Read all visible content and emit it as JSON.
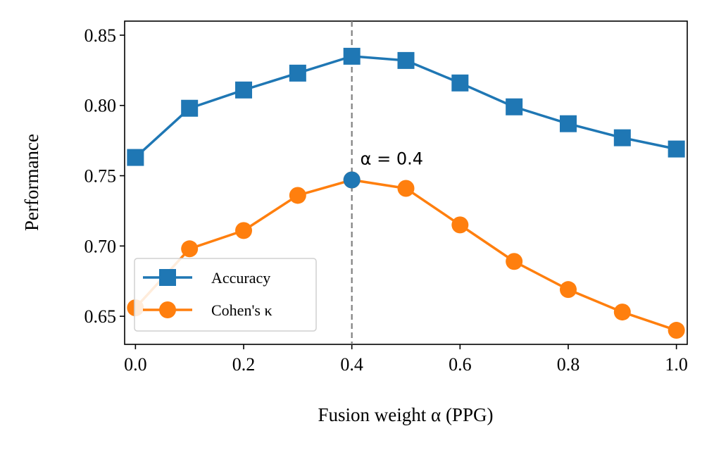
{
  "chart_data": {
    "type": "line",
    "x": [
      0.0,
      0.1,
      0.2,
      0.3,
      0.4,
      0.5,
      0.6,
      0.7,
      0.8,
      0.9,
      1.0
    ],
    "series": [
      {
        "name": "Accuracy",
        "marker": "square",
        "color": "#1f77b4",
        "values": [
          0.763,
          0.798,
          0.811,
          0.823,
          0.835,
          0.832,
          0.816,
          0.799,
          0.787,
          0.777,
          0.769
        ]
      },
      {
        "name": "Cohen's κ",
        "marker": "circle",
        "color": "#ff7f0e",
        "values": [
          0.656,
          0.698,
          0.711,
          0.736,
          0.747,
          0.741,
          0.715,
          0.689,
          0.669,
          0.653,
          0.64
        ]
      }
    ],
    "xlabel": "Fusion weight α (PPG)",
    "ylabel": "Performance",
    "xlim": [
      -0.02,
      1.02
    ],
    "ylim": [
      0.63,
      0.86
    ],
    "xticks": [
      "0.0",
      "0.2",
      "0.4",
      "0.6",
      "0.8",
      "1.0"
    ],
    "yticks": [
      "0.65",
      "0.70",
      "0.75",
      "0.80",
      "0.85"
    ],
    "xtick_values": [
      0.0,
      0.2,
      0.4,
      0.6,
      0.8,
      1.0
    ],
    "ytick_values": [
      0.65,
      0.7,
      0.75,
      0.8,
      0.85
    ],
    "vline": {
      "x": 0.4,
      "color": "#808080",
      "style": "dashed"
    },
    "highlight": {
      "x": 0.4,
      "y": 0.747,
      "color": "#1f77b4"
    },
    "annotation": {
      "text": "α = 0.4",
      "x": 0.4,
      "y": 0.747
    },
    "legend": {
      "position": "lower-left"
    },
    "grid": false
  }
}
